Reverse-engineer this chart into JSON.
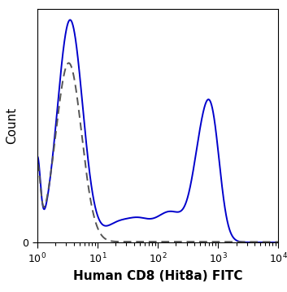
{
  "title": "",
  "xlabel": "Human CD8 (Hit8a) FITC",
  "ylabel": "Count",
  "xlim_log": [
    1.0,
    10000
  ],
  "ylim": [
    0,
    1.05
  ],
  "background_color": "#ffffff",
  "line_color_solid": "#0000cc",
  "line_color_dashed": "#555555",
  "xlabel_fontsize": 11,
  "ylabel_fontsize": 11,
  "tick_fontsize": 9,
  "linewidth": 1.4
}
